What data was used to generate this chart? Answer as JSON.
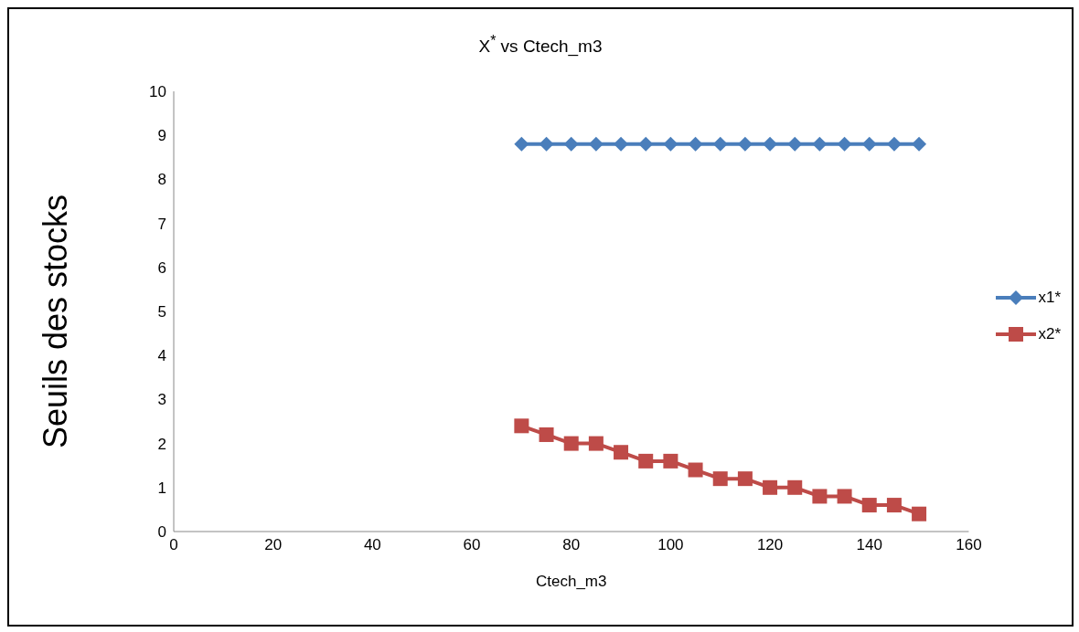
{
  "chart_data": {
    "type": "line",
    "title": "X$^{*}$ vs Ctech_m3",
    "xlabel": "Ctech_m3",
    "ylabel": "Seuils des stocks",
    "x": [
      70,
      75,
      80,
      85,
      90,
      95,
      100,
      105,
      110,
      115,
      120,
      125,
      130,
      135,
      140,
      145,
      150
    ],
    "series": [
      {
        "name": "x1*",
        "color": "#4a7ebb",
        "marker": "diamond",
        "values": [
          8.8,
          8.8,
          8.8,
          8.8,
          8.8,
          8.8,
          8.8,
          8.8,
          8.8,
          8.8,
          8.8,
          8.8,
          8.8,
          8.8,
          8.8,
          8.8,
          8.8
        ]
      },
      {
        "name": "x2*",
        "color": "#be4b48",
        "marker": "square",
        "values": [
          2.4,
          2.2,
          2.0,
          2.0,
          1.8,
          1.6,
          1.6,
          1.4,
          1.2,
          1.2,
          1.0,
          1.0,
          0.8,
          0.8,
          0.6,
          0.6,
          0.4
        ]
      }
    ],
    "xlim": [
      0,
      160
    ],
    "xticks": [
      0,
      20,
      40,
      60,
      80,
      100,
      120,
      140,
      160
    ],
    "ylim": [
      0,
      10
    ],
    "yticks": [
      0,
      1,
      2,
      3,
      4,
      5,
      6,
      7,
      8,
      9,
      10
    ],
    "grid": false,
    "legend": "right"
  }
}
